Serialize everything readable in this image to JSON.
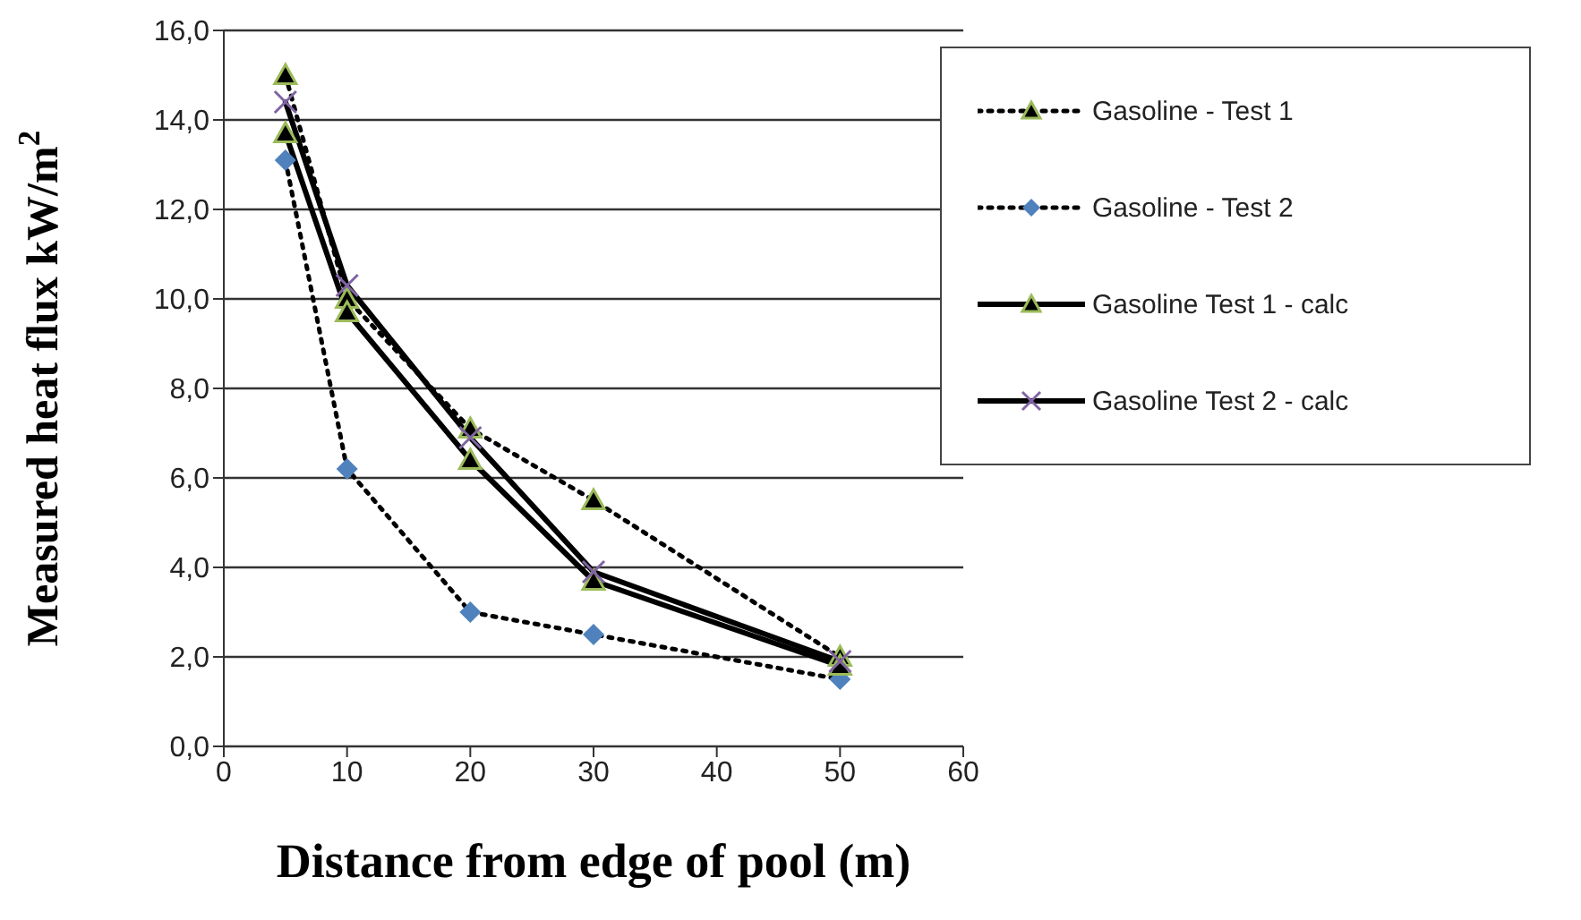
{
  "chart_data": {
    "type": "line",
    "xlabel": "Distance from edge of pool (m)",
    "ylabel": "Measured heat flux  kW/m$^{2}$",
    "x": [
      5,
      10,
      20,
      30,
      50
    ],
    "xlim": [
      0,
      60
    ],
    "xticks": [
      0,
      10,
      20,
      30,
      40,
      50,
      60
    ],
    "ylim": [
      0,
      16
    ],
    "yticks": [
      {
        "value": 0,
        "label": "0,0"
      },
      {
        "value": 2,
        "label": "2,0"
      },
      {
        "value": 4,
        "label": "4,0"
      },
      {
        "value": 6,
        "label": "6,0"
      },
      {
        "value": 8,
        "label": "8,0"
      },
      {
        "value": 10,
        "label": "10,0"
      },
      {
        "value": 12,
        "label": "12,0"
      },
      {
        "value": 14,
        "label": "14,0"
      },
      {
        "value": 16,
        "label": "16,0"
      }
    ],
    "grid": "y",
    "legend": "top right",
    "series": [
      {
        "name": "Gasoline - Test 1",
        "color": "#000000",
        "marker": "triangle",
        "line_style": "dotted",
        "values": [
          15.0,
          10.0,
          7.1,
          5.5,
          2.0
        ]
      },
      {
        "name": "Gasoline - Test 2",
        "color": "#4f81bd",
        "marker": "diamond",
        "line_style": "dotted",
        "values": [
          13.1,
          6.2,
          3.0,
          2.5,
          1.5
        ]
      },
      {
        "name": "Gasoline Test 1 - calc",
        "color": "#000000",
        "marker": "triangle",
        "line_style": "solid",
        "values": [
          13.7,
          9.7,
          6.4,
          3.7,
          1.8
        ]
      },
      {
        "name": "Gasoline Test 2 - calc",
        "color": "#000000",
        "marker": "cross",
        "line_style": "solid",
        "values": [
          14.4,
          10.3,
          6.9,
          3.9,
          1.9
        ]
      }
    ]
  }
}
